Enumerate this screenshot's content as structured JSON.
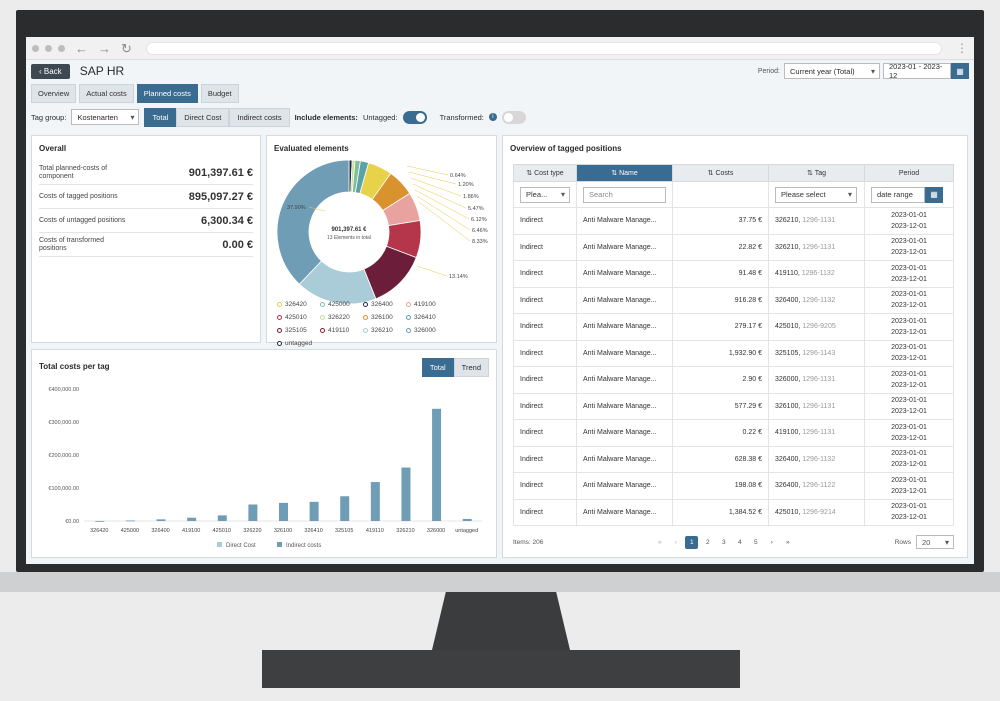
{
  "app": {
    "back": "Back",
    "title": "SAP HR"
  },
  "period": {
    "label": "Period:",
    "selected": "Current year (Total)",
    "range": "2023-01 - 2023-12"
  },
  "tabs": [
    "Overview",
    "Actual costs",
    "Planned costs",
    "Budget"
  ],
  "filters": {
    "tag_group_label": "Tag group:",
    "tag_group_value": "Kostenarten",
    "segments": [
      "Total",
      "Direct Cost",
      "Indirect costs"
    ],
    "include_label": "Include elements:",
    "untagged_label": "Untagged:",
    "transformed_label": "Transformed:"
  },
  "overall": {
    "title": "Overall",
    "rows": [
      {
        "label": "Total planned-costs of component",
        "value": "901,397.61 €"
      },
      {
        "label": "Costs of tagged positions",
        "value": "895,097.27 €"
      },
      {
        "label": "Costs of untagged positions",
        "value": "6,300.34 €"
      },
      {
        "label": "Costs of transformed positions",
        "value": "0.00 €"
      }
    ]
  },
  "evaluated": {
    "title": "Evaluated elements",
    "center_value": "901,397.61 €",
    "center_sub": "13 Elements in total",
    "slices": [
      {
        "name": "untagged",
        "pct": 0.7,
        "color": "#1d2a3a"
      },
      {
        "name": "326220",
        "pct": 0.64,
        "color": "#c8df9a"
      },
      {
        "name": "425000",
        "pct": 1.2,
        "color": "#7fbf9a"
      },
      {
        "name": "326400",
        "pct": 1.86,
        "color": "#5ca3a9"
      },
      {
        "name": "326420",
        "pct": 5.47,
        "color": "#e8d24a"
      },
      {
        "name": "326100",
        "pct": 6.12,
        "color": "#d8922e"
      },
      {
        "name": "419100",
        "pct": 6.46,
        "color": "#e8a3a0"
      },
      {
        "name": "425010",
        "pct": 8.33,
        "color": "#b5364a"
      },
      {
        "name": "419110",
        "pct": 13.14,
        "color": "#6b1d3a"
      },
      {
        "name": "326210",
        "pct": 18.18,
        "color": "#a9ccd8"
      },
      {
        "name": "326000",
        "pct": 37.9,
        "color": "#6f9db5"
      }
    ],
    "labels": [
      "0.64%",
      "1.20%",
      "1.86%",
      "5.47%",
      "6.12%",
      "6.46%",
      "8.33%",
      "13.14%",
      "37.90%"
    ],
    "legend": [
      {
        "name": "326420",
        "color": "#e8d24a"
      },
      {
        "name": "425000",
        "color": "#7fbf9a"
      },
      {
        "name": "326400",
        "color": "#1d2a3a"
      },
      {
        "name": "419100",
        "color": "#e8a3a0"
      },
      {
        "name": "425010",
        "color": "#b5364a"
      },
      {
        "name": "326220",
        "color": "#c8df9a"
      },
      {
        "name": "326100",
        "color": "#d8922e"
      },
      {
        "name": "326410",
        "color": "#5ca3a9"
      },
      {
        "name": "325105",
        "color": "#6b1d3a"
      },
      {
        "name": "419110",
        "color": "#8b1d2a"
      },
      {
        "name": "326210",
        "color": "#a9ccd8"
      },
      {
        "name": "326000",
        "color": "#6f9db5"
      },
      {
        "name": "untagged",
        "color": "#1d2a3a"
      }
    ]
  },
  "chart_data": {
    "type": "bar",
    "title": "Total costs per tag",
    "categories": [
      "326420",
      "425000",
      "326400",
      "419100",
      "425010",
      "326220",
      "326100",
      "326410",
      "325105",
      "419110",
      "326210",
      "326000",
      "untagged"
    ],
    "series": [
      {
        "name": "Direct Cost",
        "values": [
          0,
          0,
          0,
          0,
          0,
          0,
          0,
          0,
          0,
          0,
          0,
          0,
          0
        ]
      },
      {
        "name": "Indirect costs",
        "values": [
          0,
          1500,
          5000,
          10000,
          17000,
          50000,
          55000,
          58000,
          75000,
          118000,
          162000,
          340000,
          6300
        ]
      }
    ],
    "yticks": [
      "€0.00",
      "€100,000.00",
      "€200,000.00",
      "€300,000.00",
      "€400,000.00"
    ],
    "ylim": [
      0,
      400000
    ],
    "legend": "bottom",
    "grid": false
  },
  "chart_toggle": [
    "Total",
    "Trend"
  ],
  "table": {
    "title": "Overview of tagged positions",
    "headers": [
      "Cost type",
      "Name",
      "Costs",
      "Tag",
      "Period"
    ],
    "filter": {
      "cost_type": "Plea...",
      "search": "Search",
      "tag": "Please select",
      "period": "date range"
    },
    "rows": [
      [
        "Indirect",
        "Anti Malware Manage...",
        "37.75 €",
        "326210,",
        "1296-1131",
        "2023-01-01",
        "2023-12-01"
      ],
      [
        "Indirect",
        "Anti Malware Manage...",
        "22.82 €",
        "326210,",
        "1296-1131",
        "2023-01-01",
        "2023-12-01"
      ],
      [
        "Indirect",
        "Anti Malware Manage...",
        "91.48 €",
        "419110,",
        "1296-1132",
        "2023-01-01",
        "2023-12-01"
      ],
      [
        "Indirect",
        "Anti Malware Manage...",
        "916.28 €",
        "326400,",
        "1296-1132",
        "2023-01-01",
        "2023-12-01"
      ],
      [
        "Indirect",
        "Anti Malware Manage...",
        "279.17 €",
        "425010,",
        "1296-9205",
        "2023-01-01",
        "2023-12-01"
      ],
      [
        "Indirect",
        "Anti Malware Manage...",
        "1,932.90 €",
        "325105,",
        "1296-1143",
        "2023-01-01",
        "2023-12-01"
      ],
      [
        "Indirect",
        "Anti Malware Manage...",
        "2.90 €",
        "326000,",
        "1296-1131",
        "2023-01-01",
        "2023-12-01"
      ],
      [
        "Indirect",
        "Anti Malware Manage...",
        "577.29 €",
        "326100,",
        "1296-1131",
        "2023-01-01",
        "2023-12-01"
      ],
      [
        "Indirect",
        "Anti Malware Manage...",
        "0.22 €",
        "419100,",
        "1296-1131",
        "2023-01-01",
        "2023-12-01"
      ],
      [
        "Indirect",
        "Anti Malware Manage...",
        "628.38 €",
        "326400,",
        "1296-1132",
        "2023-01-01",
        "2023-12-01"
      ],
      [
        "Indirect",
        "Anti Malware Manage...",
        "198.08 €",
        "326400,",
        "1296-1122",
        "2023-01-01",
        "2023-12-01"
      ],
      [
        "Indirect",
        "Anti Malware Manage...",
        "1,384.52 €",
        "425010,",
        "1296-9214",
        "2023-01-01",
        "2023-12-01"
      ]
    ],
    "items_label": "Items: 206",
    "pages": [
      "1",
      "2",
      "3",
      "4",
      "5"
    ],
    "rows_label": "Rows",
    "rows_value": "20"
  }
}
